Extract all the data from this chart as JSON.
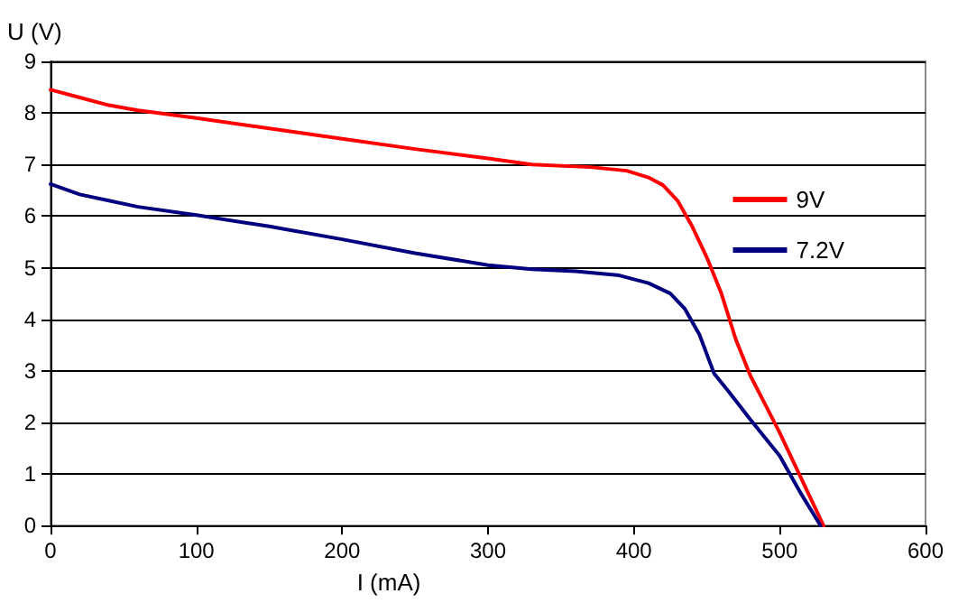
{
  "chart_data": {
    "type": "line",
    "xlabel": "I (mA)",
    "ylabel": "U (V)",
    "xlim": [
      0,
      600
    ],
    "xticks": [
      0,
      100,
      200,
      300,
      400,
      500,
      600
    ],
    "ylim": [
      0,
      9
    ],
    "yticks": [
      0,
      1,
      2,
      3,
      4,
      5,
      6,
      7,
      8,
      9
    ],
    "grid": "y",
    "legend": "right",
    "marker": "none",
    "line_style": "solid",
    "series": [
      {
        "name": "9V",
        "color": "#ff0000",
        "x": [
          0,
          20,
          40,
          60,
          100,
          150,
          200,
          250,
          300,
          330,
          370,
          395,
          410,
          420,
          430,
          440,
          450,
          460,
          470,
          480,
          490,
          500,
          510,
          520,
          530
        ],
        "values": [
          8.45,
          8.3,
          8.15,
          8.05,
          7.9,
          7.7,
          7.5,
          7.3,
          7.12,
          7.0,
          6.95,
          6.88,
          6.75,
          6.6,
          6.3,
          5.8,
          5.2,
          4.5,
          3.6,
          2.9,
          2.35,
          1.8,
          1.2,
          0.6,
          0
        ]
      },
      {
        "name": "7.2V",
        "color": "#000080",
        "x": [
          0,
          20,
          40,
          60,
          100,
          150,
          200,
          250,
          300,
          330,
          360,
          390,
          410,
          425,
          435,
          445,
          455,
          465,
          480,
          500,
          515,
          528
        ],
        "values": [
          6.62,
          6.42,
          6.3,
          6.18,
          6.02,
          5.8,
          5.55,
          5.28,
          5.05,
          4.97,
          4.93,
          4.85,
          4.7,
          4.5,
          4.2,
          3.7,
          2.95,
          2.6,
          2.05,
          1.35,
          0.6,
          0
        ]
      }
    ]
  }
}
